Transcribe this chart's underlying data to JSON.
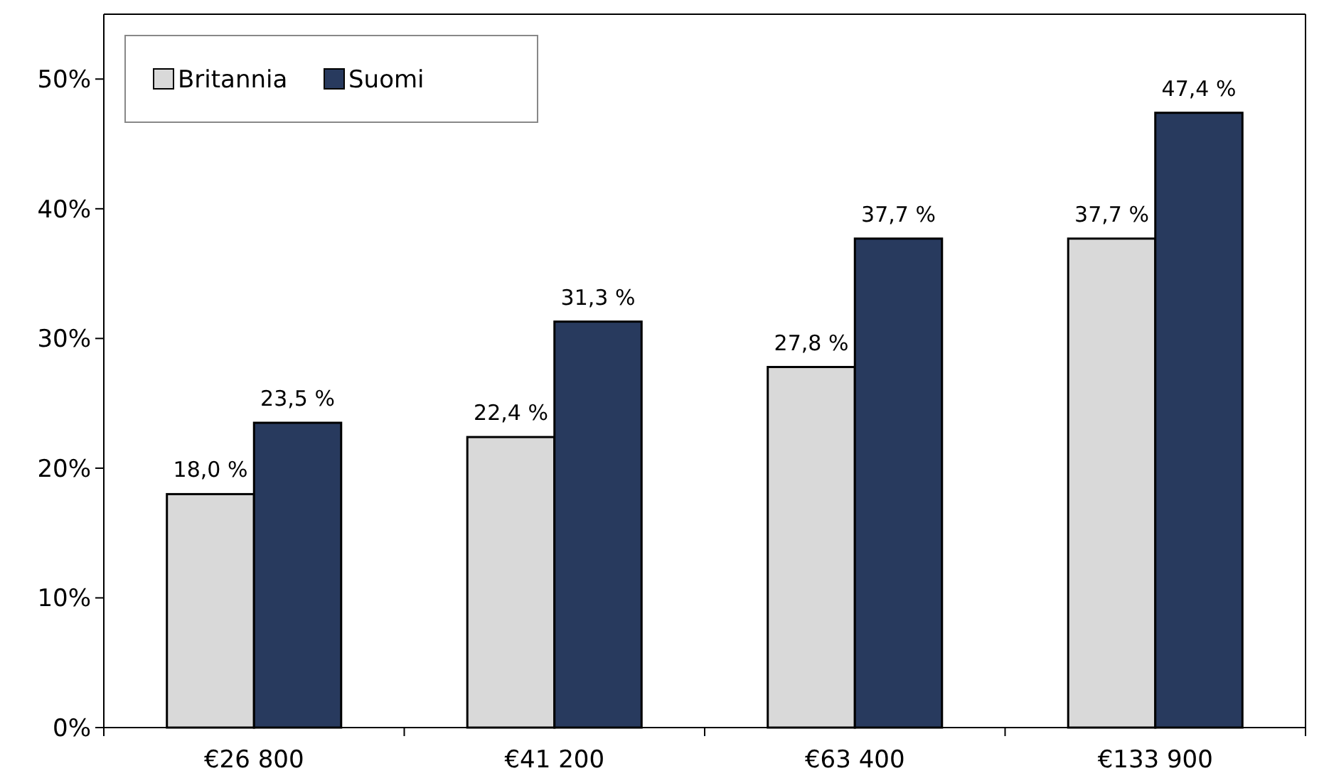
{
  "chart_data": {
    "type": "bar",
    "categories": [
      "€26 800",
      "€41 200",
      "€63 400",
      "€133 900"
    ],
    "series": [
      {
        "name": "Britannia",
        "color": "#d9d9d9",
        "values": [
          18.0,
          22.4,
          27.8,
          37.7
        ],
        "value_labels": [
          "18,0 %",
          "22,4 %",
          "27,8 %",
          "37,7 %"
        ]
      },
      {
        "name": "Suomi",
        "color": "#283a5e",
        "values": [
          23.5,
          31.3,
          37.7,
          47.4
        ],
        "value_labels": [
          "23,5 %",
          "31,3 %",
          "37,7 %",
          "47,4 %"
        ]
      }
    ],
    "ylim": [
      0,
      55
    ],
    "yticks": [
      {
        "value": 0,
        "label": "0%"
      },
      {
        "value": 10,
        "label": "10%"
      },
      {
        "value": 20,
        "label": "20%"
      },
      {
        "value": 30,
        "label": "30%"
      },
      {
        "value": 40,
        "label": "40%"
      },
      {
        "value": 50,
        "label": "50%"
      }
    ],
    "grid": false,
    "legend": "top left"
  }
}
